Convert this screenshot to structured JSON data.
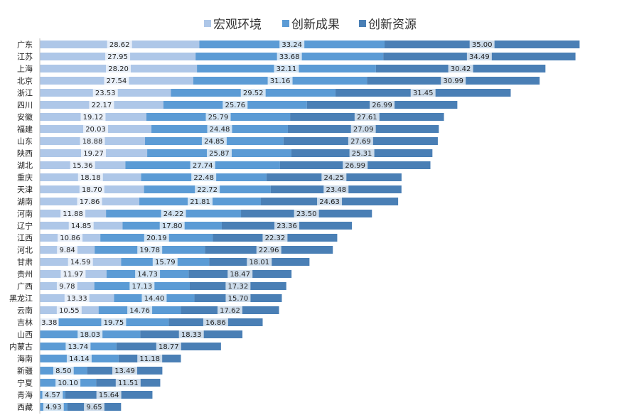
{
  "chart_data": {
    "type": "bar",
    "orientation": "horizontal",
    "stacked": true,
    "legend_position": "top",
    "grid": false,
    "categories": [
      "广东",
      "江苏",
      "上海",
      "北京",
      "浙江",
      "四川",
      "安徽",
      "福建",
      "山东",
      "陕西",
      "湖北",
      "重庆",
      "天津",
      "湖南",
      "河南",
      "辽宁",
      "江西",
      "河北",
      "甘肃",
      "贵州",
      "广西",
      "黑龙江",
      "云南",
      "吉林",
      "山西",
      "内蒙古",
      "海南",
      "新疆",
      "宁夏",
      "青海",
      "西藏"
    ],
    "series": [
      {
        "name": "宏观环境",
        "color": "#aec7e8",
        "values": [
          28.62,
          27.95,
          28.2,
          27.54,
          23.53,
          22.17,
          19.12,
          20.03,
          18.88,
          19.27,
          15.36,
          18.18,
          18.7,
          17.86,
          11.88,
          14.85,
          10.86,
          9.84,
          14.59,
          11.97,
          9.78,
          13.33,
          10.55,
          3.38,
          0,
          0,
          0,
          0,
          0,
          0,
          0
        ]
      },
      {
        "name": "创新成果",
        "color": "#5b9bd5",
        "values": [
          33.24,
          33.68,
          32.11,
          31.16,
          29.52,
          25.76,
          25.79,
          24.48,
          24.85,
          25.87,
          27.74,
          22.48,
          22.72,
          21.81,
          24.22,
          17.8,
          20.19,
          19.78,
          15.79,
          14.73,
          17.13,
          14.4,
          14.76,
          19.75,
          18.03,
          13.74,
          14.14,
          8.5,
          10.1,
          4.57,
          4.93
        ]
      },
      {
        "name": "创新资源",
        "color": "#4a7fb5",
        "values": [
          35.0,
          34.49,
          30.42,
          30.99,
          31.45,
          26.99,
          27.61,
          27.09,
          27.69,
          25.31,
          26.99,
          24.25,
          23.48,
          24.63,
          23.5,
          23.36,
          22.32,
          22.96,
          18.01,
          18.47,
          17.32,
          15.7,
          17.62,
          16.86,
          18.33,
          18.77,
          11.18,
          13.49,
          11.51,
          15.64,
          9.65
        ]
      }
    ]
  }
}
